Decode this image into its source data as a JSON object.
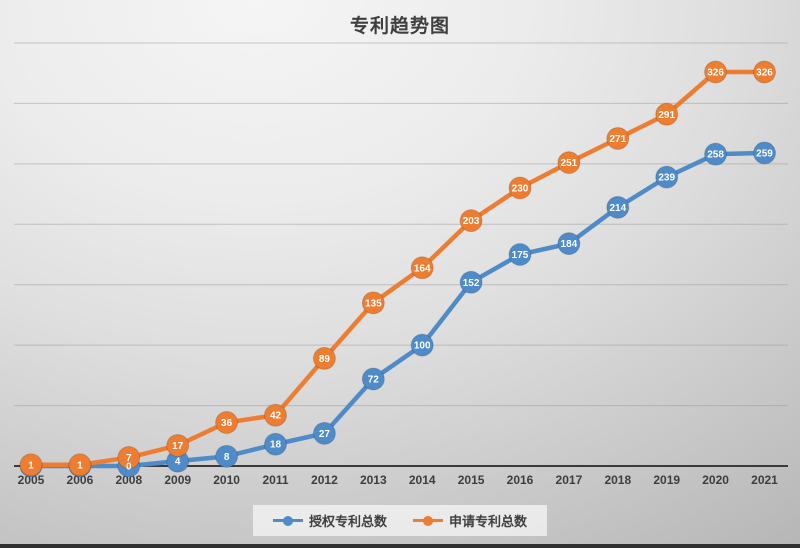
{
  "title": "专利趋势图",
  "legend": {
    "position": "bottom",
    "items": [
      {
        "label": "授权专利总数",
        "color": "#4e8bc8"
      },
      {
        "label": "申请专利总数",
        "color": "#ed7d31"
      }
    ]
  },
  "chart_data": {
    "type": "line",
    "title": "专利趋势图",
    "categories": [
      "2005",
      "2006",
      "2008",
      "2009",
      "2010",
      "2011",
      "2012",
      "2013",
      "2014",
      "2015",
      "2016",
      "2017",
      "2018",
      "2019",
      "2020",
      "2021"
    ],
    "series": [
      {
        "name": "授权专利总数",
        "color": "#4e8bc8",
        "values": [
          0,
          0,
          0,
          4,
          8,
          18,
          27,
          72,
          100,
          152,
          175,
          184,
          214,
          239,
          258,
          259
        ],
        "hidden_label_indices": [
          0,
          1
        ]
      },
      {
        "name": "申请专利总数",
        "color": "#ed7d31",
        "values": [
          1,
          1,
          7,
          17,
          36,
          42,
          89,
          135,
          164,
          203,
          230,
          251,
          271,
          291,
          326,
          326
        ],
        "hidden_label_indices": []
      }
    ],
    "xlabel": "",
    "ylabel": "",
    "ylim": [
      0,
      350
    ],
    "grid": true,
    "grid_step": 50,
    "legend_position": "bottom",
    "axis_color": "#3a3a3a",
    "grid_color": "#9a9a9a",
    "tick_color": "#3d3d3d",
    "data_label_color": "#ffffff"
  }
}
